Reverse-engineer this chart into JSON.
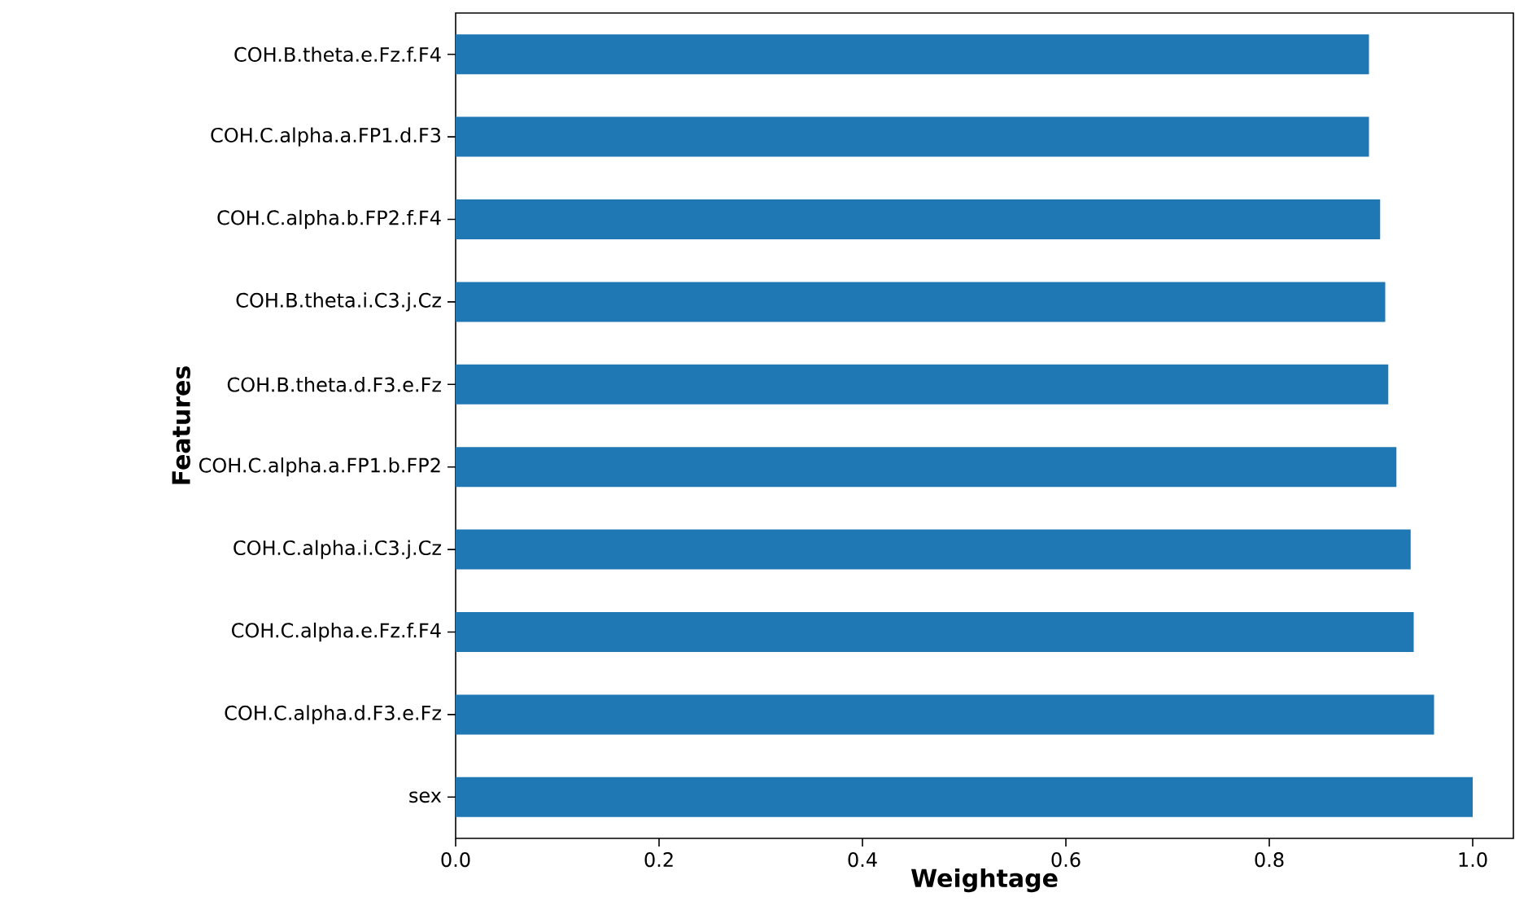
{
  "chart_data": {
    "type": "bar",
    "orientation": "horizontal",
    "xlabel": "Weightage",
    "ylabel": "Features",
    "categories": [
      "COH.B.theta.e.Fz.f.F4",
      "COH.C.alpha.a.FP1.d.F3",
      "COH.C.alpha.b.FP2.f.F4",
      "COH.B.theta.i.C3.j.Cz",
      "COH.B.theta.d.F3.e.Fz",
      "COH.C.alpha.a.FP1.b.FP2",
      "COH.C.alpha.i.C3.j.Cz",
      "COH.C.alpha.e.Fz.f.F4",
      "COH.C.alpha.d.F3.e.Fz",
      "sex"
    ],
    "values": [
      0.898,
      0.898,
      0.909,
      0.914,
      0.917,
      0.925,
      0.939,
      0.942,
      0.962,
      1.0
    ],
    "color": "#1f77b4",
    "xlim": [
      0,
      1.04
    ],
    "xticks": [
      {
        "value": 0,
        "label": "0.0"
      },
      0.2,
      0.4,
      0.6,
      0.8,
      {
        "value": 1,
        "label": "1.0"
      }
    ]
  }
}
